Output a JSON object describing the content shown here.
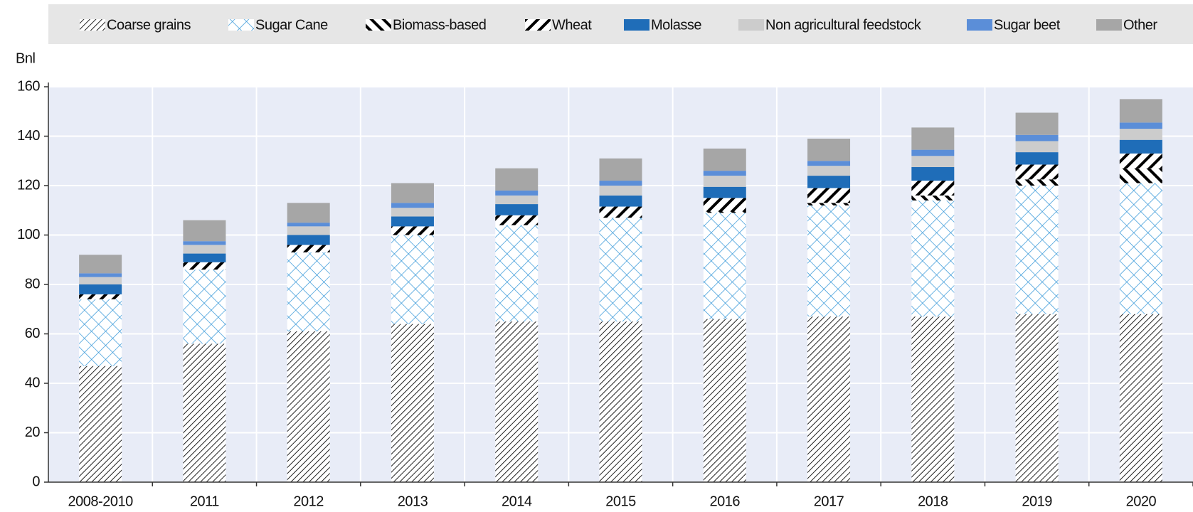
{
  "chart_data": {
    "type": "bar",
    "stacked": true,
    "y_label": "Bnl",
    "categories": [
      "2008-2010",
      "2011",
      "2012",
      "2013",
      "2014",
      "2015",
      "2016",
      "2017",
      "2018",
      "2019",
      "2020"
    ],
    "series": [
      {
        "name": "Coarse grains",
        "color": "#222222",
        "values": [
          47,
          56,
          61,
          64,
          65,
          65,
          66,
          67,
          67,
          68,
          68
        ]
      },
      {
        "name": "Sugar Cane",
        "color": "#3a9ad9",
        "values": [
          27,
          30,
          32,
          36,
          39,
          42,
          43,
          45,
          47,
          52,
          53
        ]
      },
      {
        "name": "Biomass-based",
        "color": "#000000",
        "values": [
          0,
          0,
          0,
          0,
          0,
          0,
          0.5,
          1,
          2,
          2.5,
          6
        ]
      },
      {
        "name": "Wheat",
        "color": "#000000",
        "values": [
          2,
          3,
          3,
          3.5,
          4,
          4.5,
          5.5,
          6,
          6,
          6,
          6
        ]
      },
      {
        "name": "Molasse",
        "color": "#1f6db8",
        "values": [
          4,
          3.5,
          4,
          4,
          4.5,
          4.5,
          4.5,
          5,
          5.5,
          5,
          5.5
        ]
      },
      {
        "name": "Non agricultural feedstock",
        "color": "#cccccc",
        "values": [
          3,
          3.5,
          3.5,
          3.5,
          3.5,
          4,
          4.5,
          4,
          4.5,
          4.5,
          4.5
        ]
      },
      {
        "name": "Sugar beet",
        "color": "#5b8ed8",
        "values": [
          1.5,
          1.5,
          1.5,
          2,
          2,
          2,
          2,
          2,
          2.5,
          2.5,
          2.5
        ]
      },
      {
        "name": "Other",
        "color": "#a6a6a6",
        "values": [
          7.5,
          8.5,
          8,
          8,
          9,
          9,
          9,
          9,
          9,
          9,
          9.5
        ]
      }
    ],
    "ylim": [
      0,
      160
    ],
    "yticks": [
      0,
      20,
      40,
      60,
      80,
      100,
      120,
      140,
      160
    ],
    "grid": true,
    "legend": "top"
  }
}
